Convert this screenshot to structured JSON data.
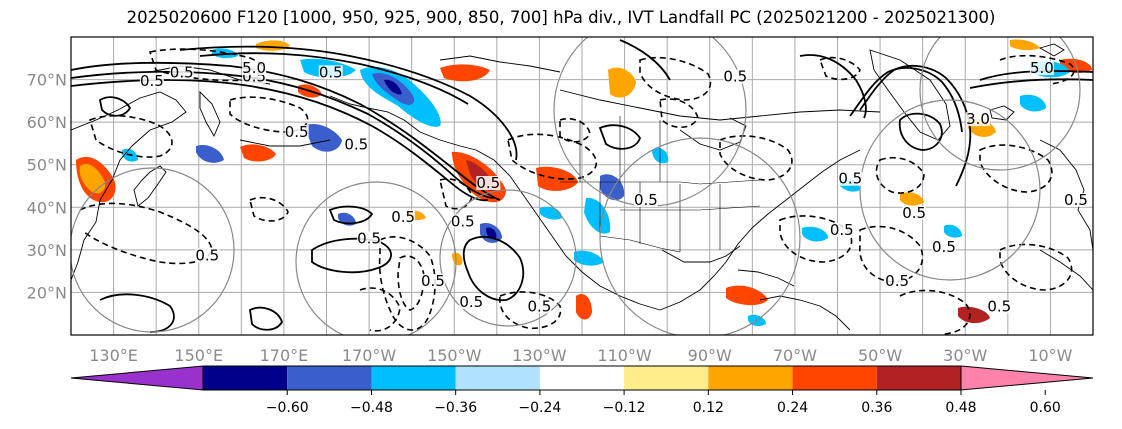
{
  "title": "2025020600 F120 [1000, 950, 925, 900, 850, 700] hPa div., IVT Landfall PC (2025021200 - 2025021300)",
  "lat_labels": [
    "70°N",
    "60°N",
    "50°N",
    "40°N",
    "30°N",
    "20°N"
  ],
  "lat_values": [
    70,
    60,
    50,
    40,
    30,
    20
  ],
  "lon_labels": [
    "130°E",
    "150°E",
    "170°E",
    "170°W",
    "150°W",
    "130°W",
    "110°W",
    "90°W",
    "70°W",
    "50°W",
    "30°W",
    "10°W"
  ],
  "lon_values": [
    130,
    150,
    170,
    190,
    210,
    230,
    250,
    270,
    290,
    310,
    330,
    350
  ],
  "map_extent": {
    "lon": [
      120,
      360
    ],
    "lat": [
      10,
      80
    ]
  },
  "colorbar": {
    "tick_labels": [
      "−0.60",
      "−0.48",
      "−0.36",
      "−0.24",
      "−0.12",
      "0.12",
      "0.24",
      "0.36",
      "0.48",
      "0.60"
    ],
    "colors": [
      "#9932cc",
      "#00008b",
      "#3a5fcd",
      "#00bfff",
      "#b0e2ff",
      "#ffffff",
      "#ffec8b",
      "#ffa500",
      "#ff4500",
      "#b22222",
      "#ff82ab"
    ]
  },
  "contour_labels": [
    {
      "text": "0.5",
      "lon": 139,
      "lat": 69
    },
    {
      "text": "0.5",
      "lon": 146,
      "lat": 71
    },
    {
      "text": "0.5",
      "lon": 163,
      "lat": 70
    },
    {
      "text": "0.5",
      "lon": 173,
      "lat": 57
    },
    {
      "text": "0.5",
      "lon": 187,
      "lat": 54
    },
    {
      "text": "0.5",
      "lon": 181,
      "lat": 71
    },
    {
      "text": "0.5",
      "lon": 198,
      "lat": 37
    },
    {
      "text": "0.5",
      "lon": 190,
      "lat": 32
    },
    {
      "text": "0.5",
      "lon": 212,
      "lat": 36
    },
    {
      "text": "0.5",
      "lon": 218,
      "lat": 45
    },
    {
      "text": "0.5",
      "lon": 152,
      "lat": 28
    },
    {
      "text": "0.5",
      "lon": 230,
      "lat": 16
    },
    {
      "text": "0.5",
      "lon": 214,
      "lat": 17
    },
    {
      "text": "0.5",
      "lon": 255,
      "lat": 41
    },
    {
      "text": "0.5",
      "lon": 303,
      "lat": 46
    },
    {
      "text": "0.5",
      "lon": 301,
      "lat": 34
    },
    {
      "text": "0.5",
      "lon": 318,
      "lat": 38
    },
    {
      "text": "0.5",
      "lon": 325,
      "lat": 30
    },
    {
      "text": "0.5",
      "lon": 314,
      "lat": 22
    },
    {
      "text": "0.5",
      "lon": 338,
      "lat": 16
    },
    {
      "text": "0.5",
      "lon": 356,
      "lat": 41
    },
    {
      "text": "3.0",
      "lon": 333,
      "lat": 60
    },
    {
      "text": "5.0",
      "lon": 348,
      "lat": 72
    },
    {
      "text": "5.0",
      "lon": 163,
      "lat": 72
    },
    {
      "text": "0.5",
      "lon": 276,
      "lat": 70
    },
    {
      "text": "0.5",
      "lon": 205,
      "lat": 22
    }
  ]
}
